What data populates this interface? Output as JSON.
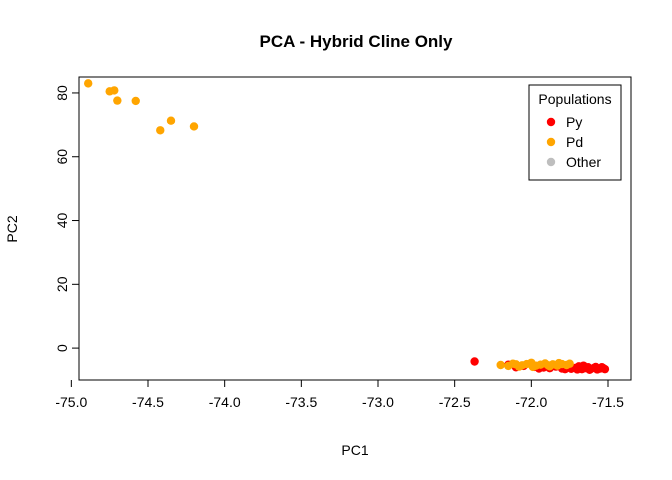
{
  "chart_data": {
    "type": "scatter",
    "title": "PCA - Hybrid Cline Only",
    "xlabel": "PC1",
    "ylabel": "PC2",
    "xlim": [
      -74.95,
      -71.35
    ],
    "ylim": [
      -10,
      85
    ],
    "xticks": [
      -75.0,
      -74.5,
      -74.0,
      -73.5,
      -73.0,
      -72.5,
      -72.0,
      -71.5
    ],
    "xtick_labels": [
      "-75.0",
      "-74.5",
      "-74.0",
      "-73.5",
      "-73.0",
      "-72.5",
      "-72.0",
      "-71.5"
    ],
    "yticks": [
      0,
      20,
      40,
      60,
      80
    ],
    "ytick_labels": [
      "0",
      "20",
      "40",
      "60",
      "80"
    ],
    "grid": false,
    "legend": {
      "title": "Populations",
      "placement": "top-right",
      "entries": [
        {
          "label": "Py",
          "color": "#ff0000"
        },
        {
          "label": "Pd",
          "color": "#ffa500"
        },
        {
          "label": "Other",
          "color": "#bebebe"
        }
      ]
    },
    "series": [
      {
        "name": "Py",
        "color": "#ff0000",
        "points": [
          [
            -72.37,
            -4.2
          ],
          [
            -72.15,
            -5.2
          ],
          [
            -72.05,
            -5.6
          ],
          [
            -71.98,
            -5.9
          ],
          [
            -71.92,
            -6.1
          ],
          [
            -71.88,
            -6.3
          ],
          [
            -71.84,
            -5.8
          ],
          [
            -71.8,
            -6.4
          ],
          [
            -71.77,
            -6.0
          ],
          [
            -71.74,
            -6.5
          ],
          [
            -71.71,
            -6.2
          ],
          [
            -71.69,
            -5.7
          ],
          [
            -71.67,
            -6.6
          ],
          [
            -71.65,
            -6.3
          ],
          [
            -71.63,
            -6.0
          ],
          [
            -71.61,
            -6.5
          ],
          [
            -71.59,
            -6.2
          ],
          [
            -71.57,
            -6.7
          ],
          [
            -71.55,
            -6.4
          ],
          [
            -71.54,
            -6.0
          ],
          [
            -71.53,
            -6.3
          ],
          [
            -71.52,
            -6.6
          ],
          [
            -71.58,
            -5.9
          ],
          [
            -71.62,
            -6.8
          ],
          [
            -71.66,
            -5.5
          ],
          [
            -71.7,
            -6.7
          ],
          [
            -71.78,
            -6.6
          ],
          [
            -71.86,
            -5.6
          ],
          [
            -71.95,
            -6.4
          ],
          [
            -72.1,
            -6.0
          ]
        ]
      },
      {
        "name": "Pd",
        "color": "#ffa500",
        "points": [
          [
            -74.89,
            83.0
          ],
          [
            -74.75,
            80.5
          ],
          [
            -74.72,
            80.8
          ],
          [
            -74.7,
            77.6
          ],
          [
            -74.58,
            77.5
          ],
          [
            -74.35,
            71.3
          ],
          [
            -74.2,
            69.5
          ],
          [
            -74.42,
            68.3
          ],
          [
            -72.2,
            -5.3
          ],
          [
            -72.15,
            -5.6
          ],
          [
            -72.1,
            -5.1
          ],
          [
            -72.06,
            -5.4
          ],
          [
            -72.03,
            -5.0
          ],
          [
            -72.0,
            -4.6
          ],
          [
            -71.97,
            -5.5
          ],
          [
            -71.94,
            -5.2
          ],
          [
            -71.91,
            -4.8
          ],
          [
            -71.89,
            -5.4
          ],
          [
            -71.86,
            -5.1
          ],
          [
            -71.83,
            -5.5
          ],
          [
            -71.8,
            -5.0
          ],
          [
            -71.77,
            -5.3
          ],
          [
            -71.75,
            -4.9
          ],
          [
            -72.08,
            -5.8
          ],
          [
            -71.99,
            -5.9
          ],
          [
            -71.88,
            -5.7
          ],
          [
            -71.82,
            -4.7
          ],
          [
            -72.12,
            -4.9
          ]
        ]
      }
    ]
  }
}
